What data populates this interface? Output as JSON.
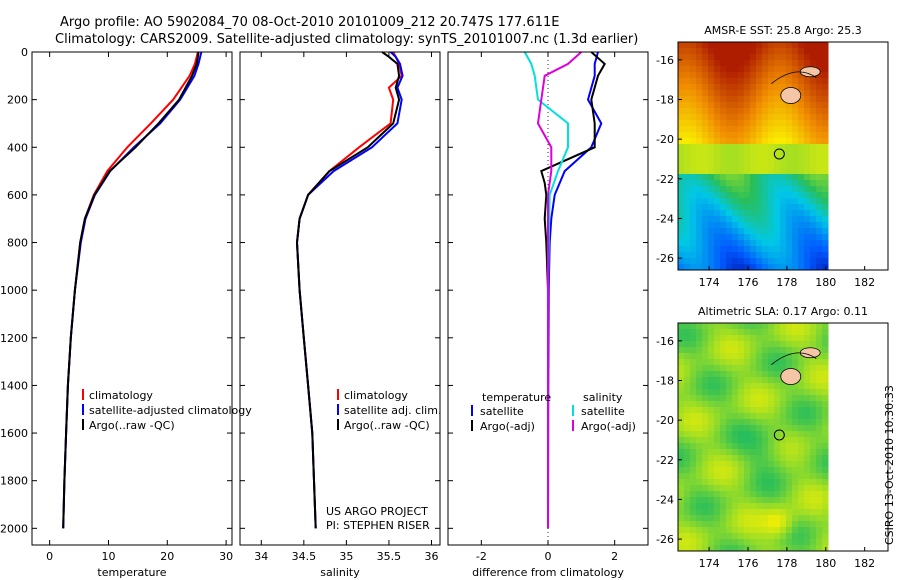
{
  "header": {
    "line1": "Argo profile: AO 5902084_70 08-Oct-2010 20101009_212 20.747S 177.611E",
    "line2": "Climatology: CARS2009. Satellite-adjusted climatology: synTS_20101007.nc (1.3d earlier)"
  },
  "side_note": "CSIRO 13-Oct-2010 10:30:33",
  "chart_data": [
    {
      "type": "line",
      "id": "temperature",
      "title": "",
      "xlabel": "temperature",
      "ylabel": "",
      "xlim": [
        -3,
        31
      ],
      "ylim": [
        2070,
        0
      ],
      "xticks": [
        0,
        10,
        20,
        30
      ],
      "yticks": [
        0,
        200,
        400,
        600,
        800,
        1000,
        1200,
        1400,
        1600,
        1800,
        2000
      ],
      "legend": [
        "climatology",
        "satellite-adjusted climatology",
        "Argo(..raw -QC)"
      ],
      "legend_location": "lower-left",
      "series": [
        {
          "name": "climatology",
          "color": "#ff0000",
          "depth": [
            0,
            20,
            50,
            100,
            200,
            300,
            400,
            500,
            600,
            700,
            800,
            1000,
            1200,
            1400,
            1600,
            1800,
            2000
          ],
          "values": [
            25.2,
            25,
            24.7,
            23.8,
            21,
            17.2,
            13.2,
            9.8,
            7.5,
            6,
            5.2,
            4.3,
            3.6,
            3.1,
            2.8,
            2.5,
            2.3
          ]
        },
        {
          "name": "satellite-adjusted climatology",
          "color": "#0000ff",
          "depth": [
            0,
            20,
            50,
            100,
            200,
            300,
            400,
            500,
            600,
            700,
            800,
            1000,
            1200,
            1400,
            1600,
            1800,
            2000
          ],
          "values": [
            25.8,
            25.6,
            25.3,
            24.6,
            22.2,
            18.8,
            14.3,
            10.3,
            7.7,
            6.1,
            5.3,
            4.3,
            3.6,
            3.1,
            2.8,
            2.5,
            2.3
          ]
        },
        {
          "name": "Argo(..raw -QC)",
          "color": "#000000",
          "depth": [
            0,
            20,
            50,
            100,
            200,
            300,
            400,
            500,
            600,
            700,
            800,
            1000,
            1200,
            1400,
            1600,
            1800,
            2000
          ],
          "values": [
            25.3,
            25.2,
            25,
            24.2,
            22,
            18.5,
            14.6,
            10.2,
            7.6,
            6,
            5.2,
            4.3,
            3.6,
            3.1,
            2.8,
            2.5,
            2.3
          ]
        }
      ]
    },
    {
      "type": "line",
      "id": "salinity",
      "title": "",
      "xlabel": "salinity",
      "ylabel": "",
      "xlim": [
        33.75,
        36.1
      ],
      "ylim": [
        2070,
        0
      ],
      "xticks": [
        34,
        34.5,
        35,
        35.5,
        36
      ],
      "yticks": [
        0,
        200,
        400,
        600,
        800,
        1000,
        1200,
        1400,
        1600,
        1800,
        2000
      ],
      "legend": [
        "climatology",
        "satellite adj. clim.",
        "Argo(..raw -QC)"
      ],
      "legend_location": "lower-right",
      "annotations": [
        "US ARGO PROJECT",
        "PI: STEPHEN RISER"
      ],
      "series": [
        {
          "name": "climatology",
          "color": "#ff0000",
          "depth": [
            0,
            20,
            50,
            100,
            150,
            200,
            300,
            400,
            500,
            600,
            700,
            800,
            1000,
            1200,
            1400,
            1600,
            1800,
            2000
          ],
          "values": [
            35.55,
            35.58,
            35.62,
            35.65,
            35.5,
            35.55,
            35.52,
            35.15,
            34.8,
            34.55,
            34.45,
            34.42,
            34.45,
            34.5,
            34.55,
            34.6,
            34.62,
            34.64
          ]
        },
        {
          "name": "satellite adj. clim.",
          "color": "#0000ff",
          "depth": [
            0,
            20,
            50,
            100,
            150,
            200,
            300,
            400,
            500,
            600,
            700,
            800,
            1000,
            1200,
            1400,
            1600,
            1800,
            2000
          ],
          "values": [
            35.52,
            35.58,
            35.63,
            35.66,
            35.6,
            35.65,
            35.6,
            35.3,
            34.85,
            34.55,
            34.45,
            34.42,
            34.45,
            34.5,
            34.55,
            34.6,
            34.62,
            34.64
          ]
        },
        {
          "name": "Argo(..raw -QC)",
          "color": "#000000",
          "depth": [
            0,
            20,
            50,
            100,
            150,
            200,
            300,
            400,
            500,
            600,
            700,
            800,
            1000,
            1200,
            1400,
            1600,
            1800,
            2000
          ],
          "values": [
            35.42,
            35.5,
            35.6,
            35.62,
            35.58,
            35.62,
            35.55,
            35.25,
            34.8,
            34.55,
            34.45,
            34.42,
            34.45,
            34.5,
            34.55,
            34.6,
            34.62,
            34.64
          ]
        }
      ]
    },
    {
      "type": "line",
      "id": "difference",
      "title": "",
      "xlabel": "difference from climatology",
      "ylabel": "",
      "xlim": [
        -3,
        3
      ],
      "ylim": [
        2070,
        0
      ],
      "xticks": [
        -2,
        0,
        2
      ],
      "yticks": [
        0,
        200,
        400,
        600,
        800,
        1000,
        1200,
        1400,
        1600,
        1800,
        2000
      ],
      "legend_groups": [
        {
          "heading": "temperature",
          "items": [
            "satellite",
            "Argo(-adj)"
          ]
        },
        {
          "heading": "salinity",
          "items": [
            "satellite",
            "Argo(-adj)"
          ]
        }
      ],
      "legend_location": "lower-center",
      "series": [
        {
          "name": "temperature satellite",
          "color": "#0000ff",
          "depth": [
            0,
            50,
            100,
            200,
            300,
            400,
            500,
            600,
            700,
            800,
            1000,
            1400,
            2000
          ],
          "values": [
            1.5,
            1.4,
            1.4,
            1.2,
            1.6,
            1.3,
            0.5,
            0.2,
            0.1,
            0.05,
            0.02,
            0.01,
            0
          ]
        },
        {
          "name": "temperature Argo(-adj)",
          "color": "#000000",
          "depth": [
            0,
            50,
            100,
            200,
            300,
            400,
            500,
            550,
            600,
            700,
            800,
            1000,
            1400,
            2000
          ],
          "values": [
            1.3,
            1.7,
            1.5,
            1.3,
            1.4,
            1.4,
            -0.2,
            -0.1,
            -0.05,
            -0.1,
            -0.05,
            0,
            0,
            0
          ]
        },
        {
          "name": "salinity satellite",
          "color": "#00e0e0",
          "depth": [
            0,
            50,
            100,
            200,
            300,
            400,
            500,
            600,
            800,
            1000,
            1400,
            2000
          ],
          "values": [
            -0.7,
            -0.5,
            -0.4,
            -0.3,
            0.6,
            0.6,
            0.3,
            0.05,
            0.02,
            0,
            0,
            0
          ]
        },
        {
          "name": "salinity Argo(-adj)",
          "color": "#dd00dd",
          "depth": [
            0,
            50,
            100,
            200,
            300,
            400,
            500,
            600,
            800,
            1000,
            1400,
            2000
          ],
          "values": [
            1,
            0.6,
            -0.1,
            -0.2,
            -0.3,
            0.1,
            0.1,
            0,
            0,
            0,
            0,
            0
          ]
        }
      ]
    },
    {
      "type": "heatmap",
      "id": "sst",
      "title": "AMSR-E SST: 25.8 Argo: 25.3",
      "xlim": [
        172.4,
        183.2
      ],
      "ylim": [
        -26.6,
        -15.1
      ],
      "xticks": [
        174,
        176,
        178,
        180,
        182
      ],
      "yticks": [
        -16,
        -18,
        -20,
        -22,
        -24,
        -26
      ],
      "marker": {
        "lon": 177.611,
        "lat": -20.747
      }
    },
    {
      "type": "heatmap",
      "id": "sla",
      "title": "Altimetric SLA: 0.17 Argo: 0.11",
      "xlim": [
        172.4,
        183.2
      ],
      "ylim": [
        -26.6,
        -15.1
      ],
      "xticks": [
        174,
        176,
        178,
        180,
        182
      ],
      "yticks": [
        -16,
        -18,
        -20,
        -22,
        -24,
        -26
      ],
      "marker": {
        "lon": 177.611,
        "lat": -20.747
      }
    }
  ]
}
